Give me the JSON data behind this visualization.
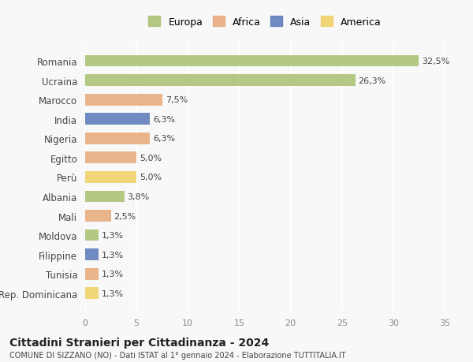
{
  "categories": [
    "Rep. Dominicana",
    "Tunisia",
    "Filippine",
    "Moldova",
    "Mali",
    "Albania",
    "Perù",
    "Egitto",
    "Nigeria",
    "India",
    "Marocco",
    "Ucraina",
    "Romania"
  ],
  "values": [
    1.3,
    1.3,
    1.3,
    1.3,
    2.5,
    3.8,
    5.0,
    5.0,
    6.3,
    6.3,
    7.5,
    26.3,
    32.5
  ],
  "colors": [
    "#f0d060",
    "#e8a878",
    "#5878b8",
    "#a8c070",
    "#e8a878",
    "#a8c070",
    "#f0d060",
    "#e8a878",
    "#e8a878",
    "#5878b8",
    "#e8a878",
    "#a8c070",
    "#a8c070"
  ],
  "labels": [
    "1,3%",
    "1,3%",
    "1,3%",
    "1,3%",
    "2,5%",
    "3,8%",
    "5,0%",
    "5,0%",
    "6,3%",
    "6,3%",
    "7,5%",
    "26,3%",
    "32,5%"
  ],
  "legend": [
    {
      "label": "Europa",
      "color": "#a8c070"
    },
    {
      "label": "Africa",
      "color": "#e8a878"
    },
    {
      "label": "Asia",
      "color": "#5878b8"
    },
    {
      "label": "America",
      "color": "#f0d060"
    }
  ],
  "title": "Cittadini Stranieri per Cittadinanza - 2024",
  "subtitle": "COMUNE DI SIZZANO (NO) - Dati ISTAT al 1° gennaio 2024 - Elaborazione TUTTITALIA.IT",
  "xlim": [
    0,
    35
  ],
  "xticks": [
    0,
    5,
    10,
    15,
    20,
    25,
    30,
    35
  ],
  "background_color": "#f8f8f8",
  "grid_color": "#ffffff",
  "bar_alpha": 0.85
}
